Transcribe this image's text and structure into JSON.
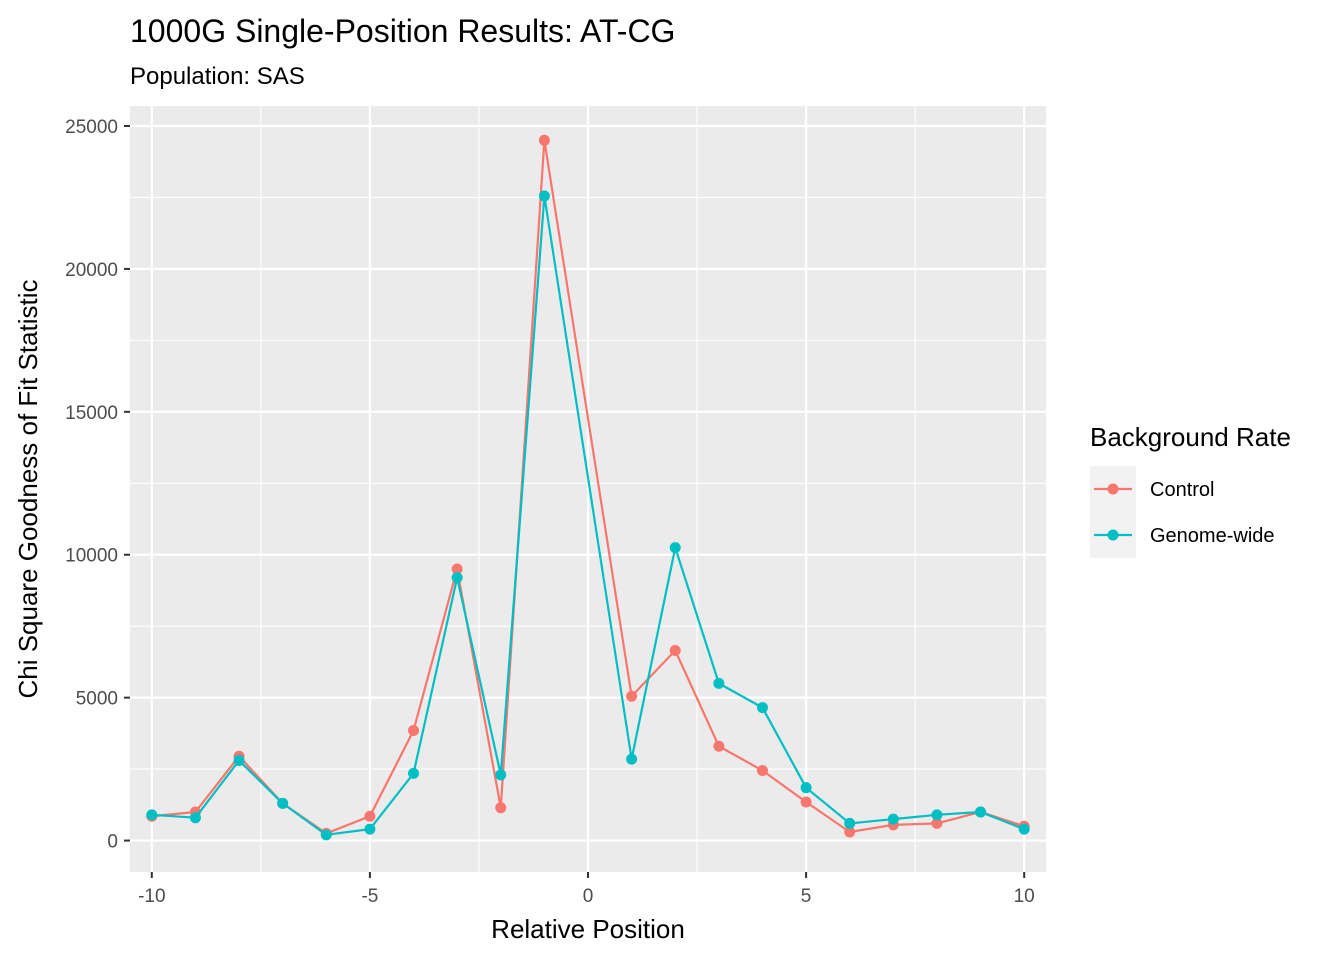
{
  "chart_data": {
    "type": "line",
    "title": "1000G Single-Position Results: AT-CG",
    "subtitle": "Population: SAS",
    "xlabel": "Relative Position",
    "ylabel": "Chi Square Goodness of Fit Statistic",
    "xlim": [
      -10.5,
      10.5
    ],
    "ylim": [
      -1100,
      25700
    ],
    "xticks": [
      -10,
      -5,
      0,
      5,
      10
    ],
    "xtick_labels": [
      "-10",
      "-5",
      "0",
      "5",
      "10"
    ],
    "yticks": [
      0,
      5000,
      10000,
      15000,
      20000,
      25000
    ],
    "ytick_labels": [
      "0",
      "5000",
      "10000",
      "15000",
      "20000",
      "25000"
    ],
    "grid": true,
    "legend": {
      "title": "Background Rate",
      "position": "right"
    },
    "x": [
      -10,
      -9,
      -8,
      -7,
      -6,
      -5,
      -4,
      -3,
      -2,
      -1,
      1,
      2,
      3,
      4,
      5,
      6,
      7,
      8,
      9,
      10
    ],
    "series": [
      {
        "name": "Control",
        "color": "#F8766D",
        "values": [
          850,
          1000,
          2950,
          1300,
          250,
          850,
          3850,
          9500,
          1150,
          24500,
          5050,
          6650,
          3300,
          2450,
          1350,
          300,
          550,
          600,
          1000,
          500
        ]
      },
      {
        "name": "Genome-wide",
        "color": "#00BFC4",
        "values": [
          900,
          800,
          2800,
          1300,
          200,
          400,
          2350,
          9200,
          2300,
          22550,
          2850,
          10250,
          5500,
          4650,
          1850,
          600,
          750,
          900,
          1000,
          400
        ]
      }
    ]
  }
}
